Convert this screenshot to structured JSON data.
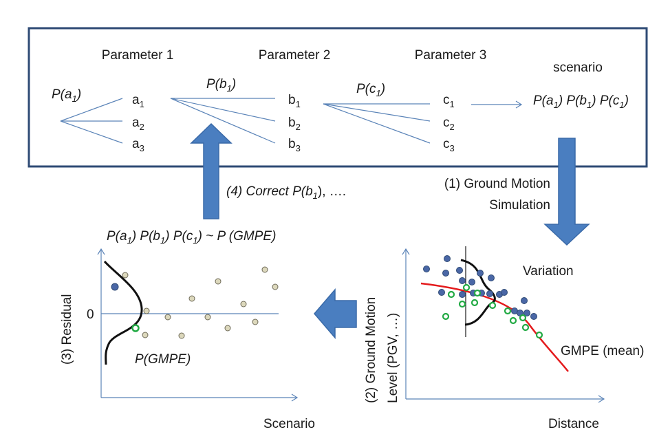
{
  "tree": {
    "param1": "Parameter 1",
    "param2": "Parameter 2",
    "param3": "Parameter 3",
    "scenario": "scenario",
    "p_a1": "P(a1)",
    "p_b1": "P(b1)",
    "p_c1": "P(c1)",
    "a_nodes": [
      "a1",
      "a2",
      "a3"
    ],
    "b_nodes": [
      "b1",
      "b2",
      "b3"
    ],
    "c_nodes": [
      "c1",
      "c2",
      "c3"
    ],
    "scenario_prob": "P(a1) P(b1) P(c1)"
  },
  "steps": {
    "step1_line1": "(1) Ground Motion",
    "step1_line2": "Simulation",
    "step2_line1": "(2) Ground Motion",
    "step2_line2": "Level (PGV, …)",
    "step3": "(3) Residual",
    "step4": "(4) Correct P(b1), …."
  },
  "right_plot": {
    "variation": "Variation",
    "gmpe_mean": "GMPE (mean)",
    "xlabel": "Distance"
  },
  "left_plot": {
    "relation": "P(a1) P(b1) P(c1) ~ P (GMPE)",
    "zero": "0",
    "p_gmpe": "P(GMPE)",
    "xlabel": "Scenario"
  },
  "colors": {
    "frame": "#2e4a74",
    "thin_line": "#5b84b8",
    "arrow_fill": "#4a7ec0",
    "arrow_edge": "#3a6aa8",
    "gmpe_curve": "#e41a1c",
    "dot_blue": "#4a67a6",
    "dot_green": "#22aa44",
    "dot_tan": "#dcd8bc"
  }
}
